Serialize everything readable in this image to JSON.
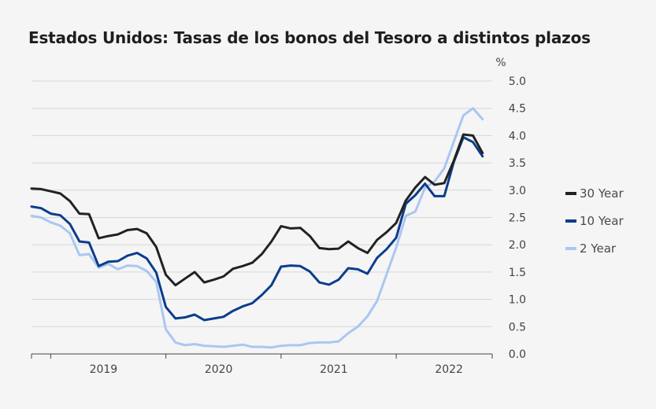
{
  "title": "Estados Unidos: Tasas de los bonos del Tesoro a distintos plazos",
  "chart_data": {
    "type": "line",
    "title": "Estados Unidos: Tasas de los bonos del Tesoro a distintos plazos",
    "ylabel": "%",
    "ylim": [
      0,
      5
    ],
    "yticks": [
      "0.0",
      "0.5",
      "1.0",
      "1.5",
      "2.0",
      "2.5",
      "3.0",
      "3.5",
      "4.0",
      "4.5",
      "5.0"
    ],
    "x_start": "2018-11",
    "x_end": "2022-11",
    "x_tick_labels": [
      "2019",
      "2020",
      "2021",
      "2022"
    ],
    "grid": true,
    "legend_position": "right",
    "x": [
      "2018-11",
      "2018-12",
      "2019-01",
      "2019-02",
      "2019-03",
      "2019-04",
      "2019-05",
      "2019-06",
      "2019-07",
      "2019-08",
      "2019-09",
      "2019-10",
      "2019-11",
      "2019-12",
      "2020-01",
      "2020-02",
      "2020-03",
      "2020-04",
      "2020-05",
      "2020-06",
      "2020-07",
      "2020-08",
      "2020-09",
      "2020-10",
      "2020-11",
      "2020-12",
      "2021-01",
      "2021-02",
      "2021-03",
      "2021-04",
      "2021-05",
      "2021-06",
      "2021-07",
      "2021-08",
      "2021-09",
      "2021-10",
      "2021-11",
      "2021-12",
      "2022-01",
      "2022-02",
      "2022-03",
      "2022-04",
      "2022-05",
      "2022-06",
      "2022-07",
      "2022-08",
      "2022-09",
      "2022-10",
      "2022-11"
    ],
    "series": [
      {
        "name": "30 Year",
        "color": "#222222",
        "values": [
          3.03,
          3.02,
          2.98,
          2.94,
          2.8,
          2.57,
          2.56,
          2.12,
          2.16,
          2.19,
          2.27,
          2.29,
          2.21,
          1.96,
          1.45,
          1.26,
          1.38,
          1.5,
          1.31,
          1.36,
          1.42,
          1.56,
          1.61,
          1.67,
          1.83,
          2.06,
          2.34,
          2.3,
          2.31,
          2.16,
          1.94,
          1.92,
          1.93,
          2.06,
          1.94,
          1.85,
          2.09,
          2.23,
          2.4,
          2.81,
          3.05,
          3.24,
          3.1,
          3.13,
          3.54,
          4.02,
          4.0,
          3.68,
          null
        ]
      },
      {
        "name": "10 Year",
        "color": "#0b3d8c",
        "values": [
          2.7,
          2.67,
          2.57,
          2.54,
          2.38,
          2.06,
          2.04,
          1.61,
          1.69,
          1.7,
          1.8,
          1.85,
          1.75,
          1.49,
          0.86,
          0.65,
          0.67,
          0.72,
          0.62,
          0.65,
          0.68,
          0.79,
          0.87,
          0.93,
          1.08,
          1.26,
          1.6,
          1.62,
          1.61,
          1.51,
          1.31,
          1.27,
          1.36,
          1.57,
          1.55,
          1.47,
          1.76,
          1.92,
          2.13,
          2.75,
          2.91,
          3.12,
          2.89,
          2.89,
          3.52,
          3.97,
          3.88,
          3.62,
          null
        ]
      },
      {
        "name": "2 Year",
        "color": "#a9c7f2",
        "values": [
          2.53,
          2.5,
          2.41,
          2.35,
          2.21,
          1.81,
          1.83,
          1.58,
          1.65,
          1.55,
          1.62,
          1.61,
          1.52,
          1.32,
          0.45,
          0.21,
          0.16,
          0.18,
          0.15,
          0.14,
          0.13,
          0.15,
          0.17,
          0.13,
          0.13,
          0.12,
          0.15,
          0.16,
          0.16,
          0.2,
          0.21,
          0.21,
          0.23,
          0.38,
          0.5,
          0.69,
          0.97,
          1.46,
          1.95,
          2.53,
          2.61,
          3.05,
          3.16,
          3.4,
          3.89,
          4.37,
          4.5,
          4.3,
          null
        ]
      }
    ]
  }
}
